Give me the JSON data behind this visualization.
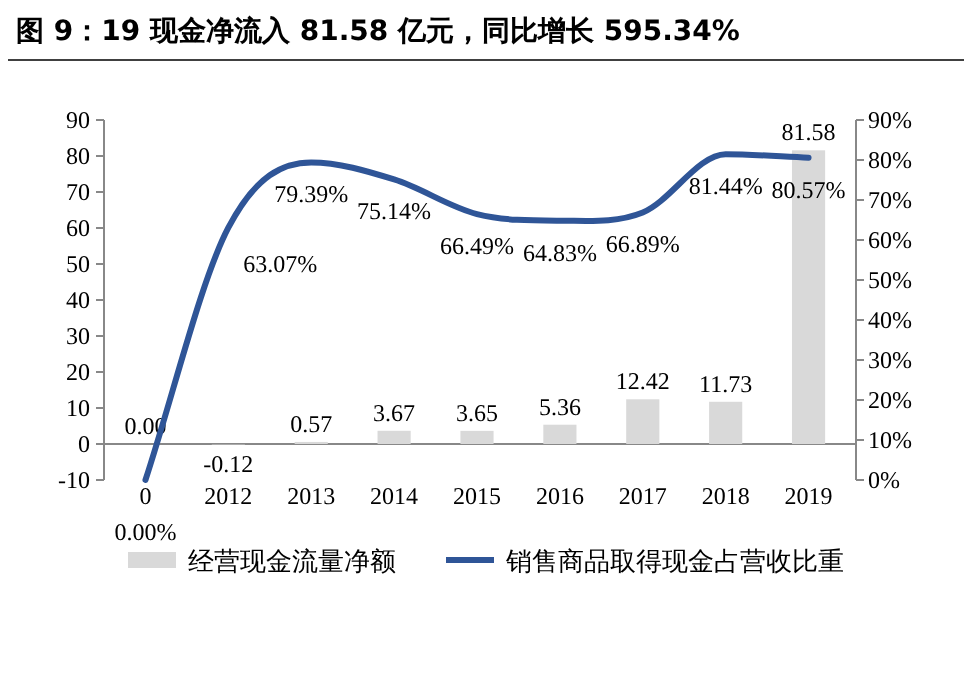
{
  "chart_data": {
    "type": "bar",
    "title": "**图 9：19 现金净流入 81.58 亿元，同比增长 595.34%**",
    "categories": [
      "0",
      "2012",
      "2013",
      "2014",
      "2015",
      "2016",
      "2017",
      "2018",
      "2019"
    ],
    "series": [
      {
        "name": "经营现金流量净额",
        "type": "bar",
        "color": "#d9d9d9",
        "values": [
          0.0,
          -0.12,
          0.57,
          3.67,
          3.65,
          5.36,
          12.42,
          11.73,
          81.58
        ],
        "value_labels": [
          "0.00",
          "-0.12",
          "0.57",
          "3.67",
          "3.65",
          "5.36",
          "12.42",
          "11.73",
          "81.58"
        ]
      },
      {
        "name": "销售商品取得现金占营收比重",
        "type": "line",
        "axis": "y2",
        "color": "#2f5597",
        "values": [
          0.0,
          63.07,
          79.39,
          75.14,
          66.49,
          64.83,
          66.89,
          81.44,
          80.57
        ],
        "value_labels": [
          "0.00%",
          "63.07%",
          "79.39%",
          "75.14%",
          "66.49%",
          "64.83%",
          "66.89%",
          "81.44%",
          "80.57%"
        ]
      }
    ],
    "ylim": [
      -10,
      90
    ],
    "yticks": [
      -10,
      0,
      10,
      20,
      30,
      40,
      50,
      60,
      70,
      80,
      90
    ],
    "y2lim": [
      0,
      90
    ],
    "y2ticks": [
      {
        "value": 0,
        "label": "0%"
      },
      {
        "value": 10,
        "label": "10%"
      },
      {
        "value": 20,
        "label": "20%"
      },
      {
        "value": 30,
        "label": "30%"
      },
      {
        "value": 40,
        "label": "40%"
      },
      {
        "value": 50,
        "label": "50%"
      },
      {
        "value": 60,
        "label": "60%"
      },
      {
        "value": 70,
        "label": "70%"
      },
      {
        "value": 80,
        "label": "80%"
      },
      {
        "value": 90,
        "label": "90%"
      }
    ],
    "legend": "bottom"
  }
}
